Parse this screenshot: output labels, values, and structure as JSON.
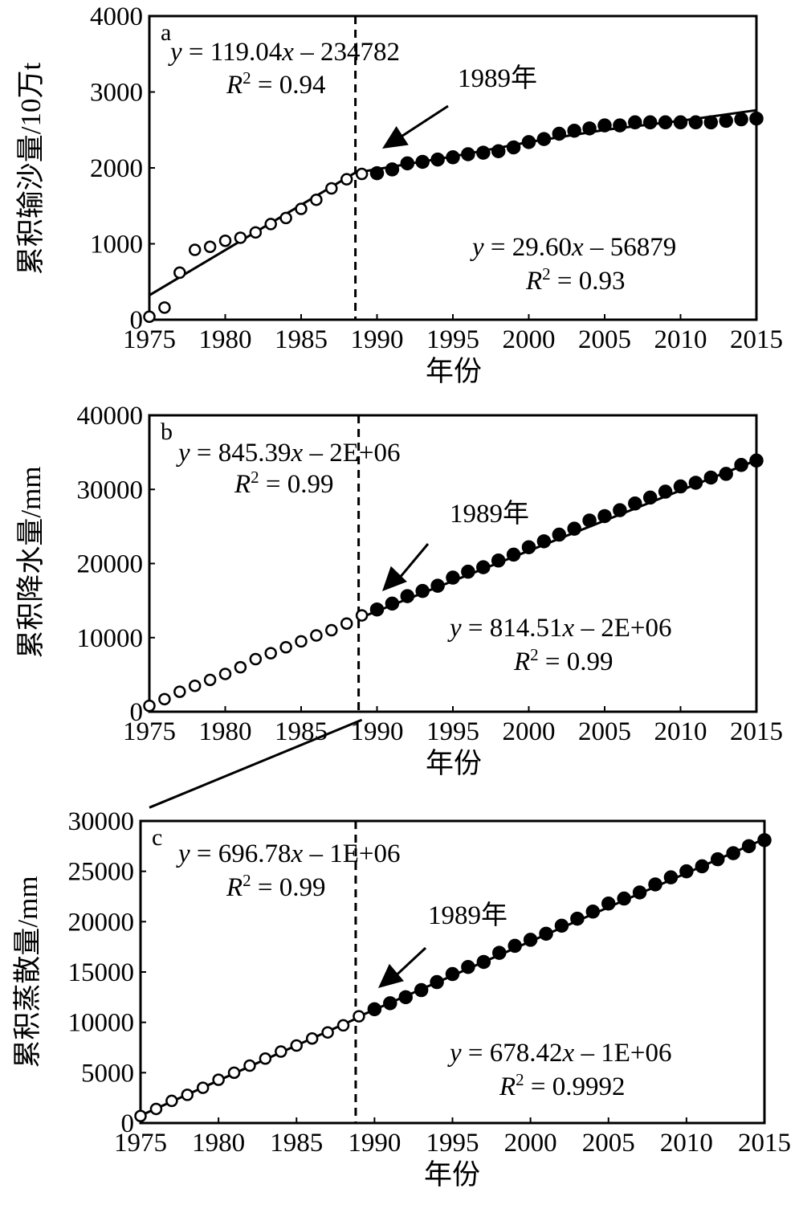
{
  "chart_data": [
    {
      "panel": "a",
      "type": "scatter",
      "xlabel": "年份",
      "ylabel": "累积输沙量/10万t",
      "xlim": [
        1975,
        2015
      ],
      "ylim": [
        0,
        4000
      ],
      "xticks": [
        "1975",
        "1980",
        "1985",
        "1990",
        "1995",
        "2000",
        "2005",
        "2010",
        "2015"
      ],
      "yticks": [
        "0",
        "1000",
        "2000",
        "3000",
        "4000"
      ],
      "break_year": 1989,
      "break_label": "1989年",
      "series": [
        {
          "marker": "open-circle",
          "x": [
            1975,
            1976,
            1977,
            1978,
            1979,
            1980,
            1981,
            1982,
            1983,
            1984,
            1985,
            1986,
            1987,
            1988,
            1989
          ],
          "y": [
            40,
            160,
            620,
            920,
            960,
            1040,
            1080,
            1150,
            1260,
            1340,
            1460,
            1580,
            1730,
            1850,
            1920
          ]
        },
        {
          "marker": "filled-circle",
          "x": [
            1990,
            1991,
            1992,
            1993,
            1994,
            1995,
            1996,
            1997,
            1998,
            1999,
            2000,
            2001,
            2002,
            2003,
            2004,
            2005,
            2006,
            2007,
            2008,
            2009,
            2010,
            2011,
            2012,
            2013,
            2014,
            2015
          ],
          "y": [
            1930,
            1980,
            2060,
            2080,
            2110,
            2140,
            2180,
            2200,
            2220,
            2270,
            2340,
            2380,
            2450,
            2490,
            2520,
            2560,
            2560,
            2600,
            2600,
            2600,
            2600,
            2600,
            2600,
            2620,
            2640,
            2650
          ]
        }
      ],
      "fit_lines": [
        {
          "slope": 119.04,
          "intercept": -234782,
          "x_range": [
            1975,
            1989
          ],
          "equation": "= 119.04",
          "r2": "= 0.94"
        },
        {
          "x": [
            1989,
            1995,
            2000,
            2005,
            2010,
            2015
          ],
          "y": [
            1950,
            2150,
            2340,
            2500,
            2620,
            2760
          ],
          "equation": "= 29.60",
          "r2": "= 0.93"
        }
      ],
      "eq_intercepts": [
        "– 234782",
        "– 56879"
      ]
    },
    {
      "panel": "b",
      "type": "scatter",
      "xlabel": "年份",
      "ylabel": "累积降水量/mm",
      "xlim": [
        1975,
        2015
      ],
      "ylim": [
        0,
        40000
      ],
      "xticks": [
        "1975",
        "1980",
        "1985",
        "1990",
        "1995",
        "2000",
        "2005",
        "2010",
        "2015"
      ],
      "yticks": [
        "0",
        "10000",
        "20000",
        "30000",
        "40000"
      ],
      "break_year": 1989,
      "break_label": "1989年",
      "series": [
        {
          "marker": "open-circle",
          "x": [
            1975,
            1976,
            1977,
            1978,
            1979,
            1980,
            1981,
            1982,
            1983,
            1984,
            1985,
            1986,
            1987,
            1988,
            1989
          ],
          "y": [
            800,
            1700,
            2700,
            3500,
            4300,
            5100,
            6000,
            7100,
            7900,
            8700,
            9500,
            10300,
            11000,
            11900,
            13000
          ]
        },
        {
          "marker": "filled-circle",
          "x": [
            1990,
            1991,
            1992,
            1993,
            1994,
            1995,
            1996,
            1997,
            1998,
            1999,
            2000,
            2001,
            2002,
            2003,
            2004,
            2005,
            2006,
            2007,
            2008,
            2009,
            2010,
            2011,
            2012,
            2013,
            2014,
            2015
          ],
          "y": [
            13800,
            14600,
            15600,
            16300,
            17000,
            18100,
            18900,
            19500,
            20400,
            21200,
            22200,
            23000,
            23900,
            24700,
            25800,
            26400,
            27200,
            28100,
            28900,
            29700,
            30400,
            30900,
            31600,
            32100,
            33300,
            33900
          ]
        }
      ],
      "fit_lines": [
        {
          "slope": 845.39,
          "intercept": -1682580,
          "x_range": [
            1975,
            1989
          ],
          "equation": "= 845.39",
          "r2": "= 0.99"
        },
        {
          "slope": 814.51,
          "intercept": -1607300,
          "x_range": [
            1989,
            2015
          ],
          "equation": "= 814.51",
          "r2": "= 0.99"
        }
      ],
      "eq_intercepts": [
        "– 2E+06",
        "– 2E+06"
      ]
    },
    {
      "panel": "c",
      "type": "scatter",
      "xlabel": "年份",
      "ylabel": "累积蒸散量/mm",
      "xlim": [
        1975,
        2015
      ],
      "ylim": [
        0,
        30000
      ],
      "xticks": [
        "1975",
        "1980",
        "1985",
        "1990",
        "1995",
        "2000",
        "2005",
        "2010",
        "2015"
      ],
      "yticks": [
        "0",
        "5000",
        "10000",
        "15000",
        "20000",
        "25000",
        "30000"
      ],
      "break_year": 1989,
      "break_label": "1989年",
      "series": [
        {
          "marker": "open-circle",
          "x": [
            1975,
            1976,
            1977,
            1978,
            1979,
            1980,
            1981,
            1982,
            1983,
            1984,
            1985,
            1986,
            1987,
            1988,
            1989
          ],
          "y": [
            700,
            1400,
            2200,
            2800,
            3500,
            4300,
            5000,
            5700,
            6400,
            7100,
            7700,
            8400,
            9000,
            9700,
            10600
          ]
        },
        {
          "marker": "filled-circle",
          "x": [
            1990,
            1991,
            1992,
            1993,
            1994,
            1995,
            1996,
            1997,
            1998,
            1999,
            2000,
            2001,
            2002,
            2003,
            2004,
            2005,
            2006,
            2007,
            2008,
            2009,
            2010,
            2011,
            2012,
            2013,
            2014,
            2015
          ],
          "y": [
            11300,
            11900,
            12500,
            13200,
            14000,
            14800,
            15500,
            16000,
            16900,
            17600,
            18200,
            18800,
            19600,
            20300,
            21000,
            21800,
            22300,
            22900,
            23700,
            24400,
            25000,
            25500,
            26200,
            26800,
            27500,
            28100
          ]
        }
      ],
      "fit_lines": [
        {
          "slope": 696.78,
          "intercept": -1375400,
          "x_range": [
            1975,
            1989
          ],
          "equation": "= 696.78",
          "r2": "= 0.99"
        },
        {
          "slope": 678.42,
          "intercept": -1338800,
          "x_range": [
            1989,
            2015
          ],
          "equation": "= 678.42",
          "r2": "= 0.9992"
        }
      ],
      "eq_intercepts": [
        "– 1E+06",
        "– 1E+06"
      ]
    }
  ]
}
